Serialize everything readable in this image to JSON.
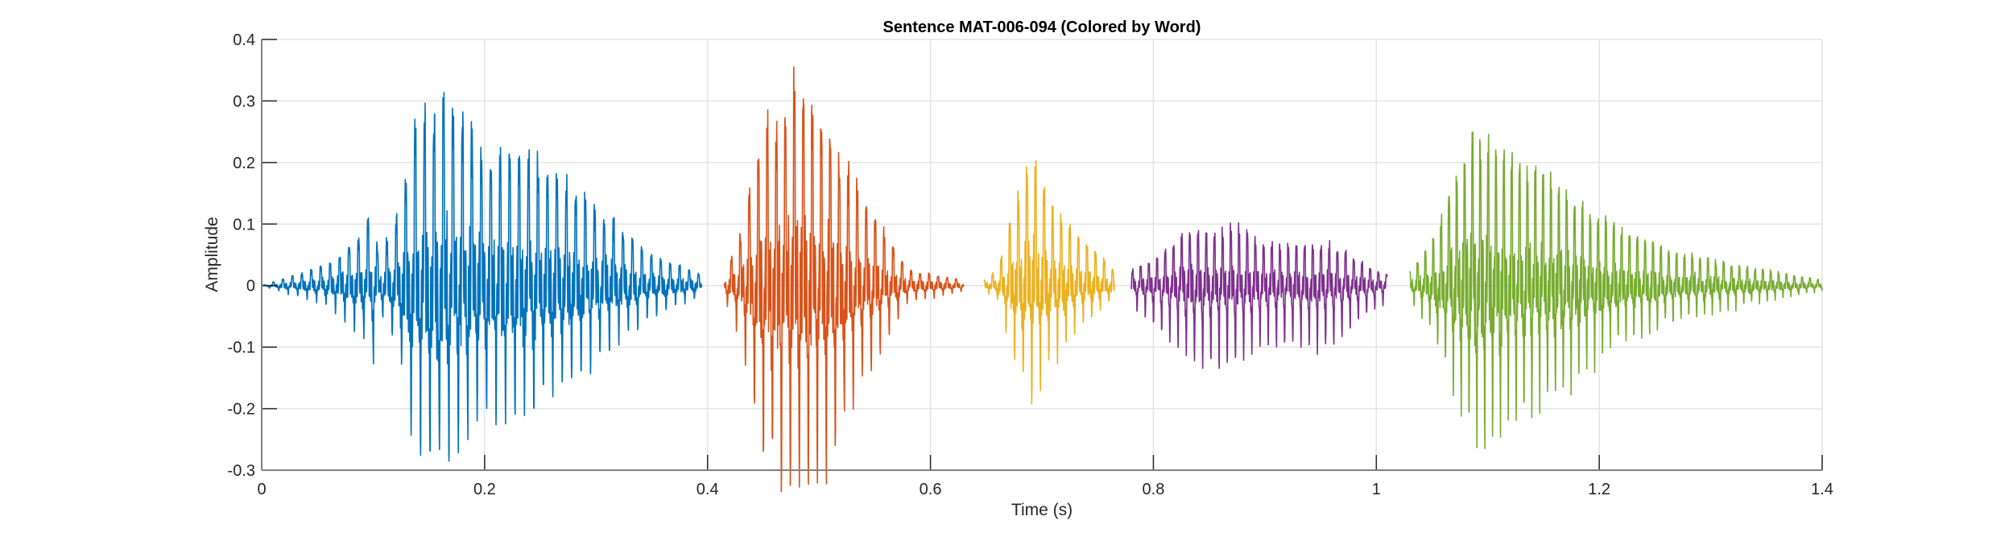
{
  "chart_data": {
    "type": "line",
    "title": "Sentence MAT-006-094 (Colored by Word)",
    "xlabel": "Time (s)",
    "ylabel": "Amplitude",
    "xlim": [
      0,
      1.4
    ],
    "ylim": [
      -0.3,
      0.4
    ],
    "xticks": [
      0,
      0.2,
      0.4,
      0.6,
      0.8,
      1,
      1.2,
      1.4
    ],
    "xtick_labels": [
      "0",
      "0.2",
      "0.4",
      "0.6",
      "0.8",
      "1",
      "1.2",
      "1.4"
    ],
    "yticks": [
      -0.3,
      -0.2,
      -0.1,
      0,
      0.1,
      0.2,
      0.3,
      0.4
    ],
    "ytick_labels": [
      "-0.3",
      "-0.2",
      "-0.1",
      "0",
      "0.1",
      "0.2",
      "0.3",
      "0.4"
    ],
    "grid": true,
    "series": [
      {
        "color": "#0072BD",
        "t_range": [
          0,
          0.395
        ],
        "peak_pos": 0.37,
        "peak_neg": -0.25,
        "envelope": [
          [
            0,
            0
          ],
          [
            0.03,
            0.02
          ],
          [
            0.06,
            0.04
          ],
          [
            0.09,
            0.1
          ],
          [
            0.1,
            0.15
          ],
          [
            0.105,
            0.05
          ],
          [
            0.125,
            0.15
          ],
          [
            0.135,
            0.3
          ],
          [
            0.165,
            0.37
          ],
          [
            0.2,
            0.25
          ],
          [
            0.24,
            0.25
          ],
          [
            0.3,
            0.15
          ],
          [
            0.35,
            0.06
          ],
          [
            0.395,
            0.02
          ]
        ]
      },
      {
        "color": "#D95319",
        "t_range": [
          0.415,
          0.63
        ],
        "peak_pos": 0.37,
        "peak_neg": -0.29,
        "envelope": [
          [
            0.415,
            0.02
          ],
          [
            0.43,
            0.1
          ],
          [
            0.45,
            0.3
          ],
          [
            0.48,
            0.37
          ],
          [
            0.5,
            0.33
          ],
          [
            0.53,
            0.2
          ],
          [
            0.56,
            0.1
          ],
          [
            0.58,
            0.03
          ],
          [
            0.63,
            0.01
          ]
        ]
      },
      {
        "color": "#EDB120",
        "t_range": [
          0.648,
          0.765
        ],
        "peak_pos": 0.25,
        "peak_neg": -0.15,
        "envelope": [
          [
            0.648,
            0.01
          ],
          [
            0.66,
            0.03
          ],
          [
            0.675,
            0.15
          ],
          [
            0.69,
            0.25
          ],
          [
            0.71,
            0.15
          ],
          [
            0.74,
            0.08
          ],
          [
            0.765,
            0.03
          ]
        ]
      },
      {
        "color": "#7E2F8E",
        "t_range": [
          0.78,
          1.01
        ],
        "peak_pos": 0.11,
        "peak_neg": -0.12,
        "envelope": [
          [
            0.78,
            0.03
          ],
          [
            0.8,
            0.05
          ],
          [
            0.83,
            0.1
          ],
          [
            0.87,
            0.11
          ],
          [
            0.9,
            0.08
          ],
          [
            0.93,
            0.08
          ],
          [
            0.96,
            0.08
          ],
          [
            0.99,
            0.04
          ],
          [
            1.01,
            0.02
          ]
        ]
      },
      {
        "color": "#77AC30",
        "t_range": [
          1.03,
          1.4
        ],
        "peak_pos": 0.3,
        "peak_neg": -0.22,
        "envelope": [
          [
            1.03,
            0.03
          ],
          [
            1.05,
            0.08
          ],
          [
            1.07,
            0.2
          ],
          [
            1.09,
            0.3
          ],
          [
            1.12,
            0.25
          ],
          [
            1.16,
            0.2
          ],
          [
            1.2,
            0.13
          ],
          [
            1.26,
            0.07
          ],
          [
            1.32,
            0.04
          ],
          [
            1.4,
            0.01
          ]
        ]
      }
    ]
  }
}
